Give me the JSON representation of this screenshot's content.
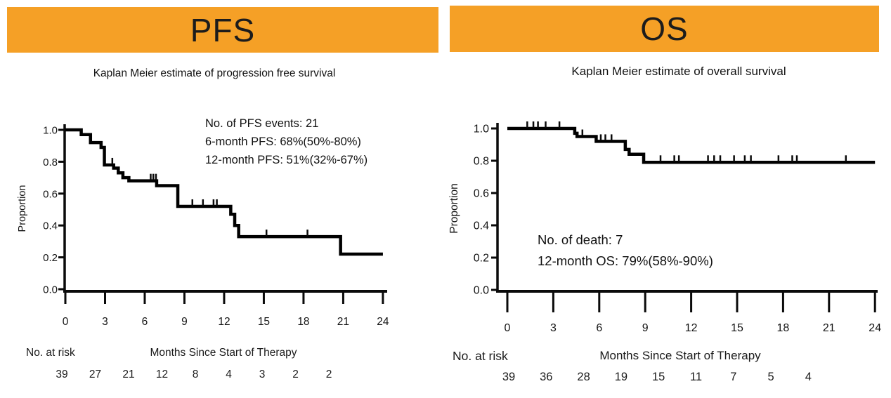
{
  "colors": {
    "banner": "#F5A026",
    "curve": "#000000"
  },
  "chart_data": [
    {
      "type": "line",
      "subtype": "kaplan-meier-step",
      "title": "PFS",
      "subtitle": "Kaplan Meier estimate of progression free survival",
      "xlabel": "Months Since Start of Therapy",
      "ylabel": "Proportion",
      "xlim": [
        0,
        24
      ],
      "ylim": [
        0.0,
        1.0
      ],
      "x_ticks": [
        {
          "v": 0,
          "label": "0"
        },
        {
          "v": 3,
          "label": "3"
        },
        {
          "v": 6,
          "label": "6"
        },
        {
          "v": 9,
          "label": "9"
        },
        {
          "v": 12,
          "label": "12"
        },
        {
          "v": 15,
          "label": "15"
        },
        {
          "v": 18,
          "label": "18"
        },
        {
          "v": 21,
          "label": "21"
        },
        {
          "v": 24,
          "label": "24"
        }
      ],
      "y_ticks": [
        {
          "v": 0.0,
          "label": "0.0"
        },
        {
          "v": 0.2,
          "label": "0.2"
        },
        {
          "v": 0.4,
          "label": "0.4"
        },
        {
          "v": 0.6,
          "label": "0.6"
        },
        {
          "v": 0.8,
          "label": "0.8"
        },
        {
          "v": 1.0,
          "label": "1.0"
        }
      ],
      "annotations": [
        "No. of PFS events: 21",
        "6-month PFS: 68%(50%-80%)",
        "12-month PFS: 51%(32%-67%)"
      ],
      "steps": [
        {
          "t": 1.2,
          "p": 1.0
        },
        {
          "t": 1.9,
          "p": 0.97
        },
        {
          "t": 2.7,
          "p": 0.92
        },
        {
          "t": 2.95,
          "p": 0.89
        },
        {
          "t": 3.65,
          "p": 0.78
        },
        {
          "t": 4.0,
          "p": 0.76
        },
        {
          "t": 4.35,
          "p": 0.73
        },
        {
          "t": 4.8,
          "p": 0.7
        },
        {
          "t": 6.9,
          "p": 0.68
        },
        {
          "t": 8.5,
          "p": 0.65
        },
        {
          "t": 12.5,
          "p": 0.52
        },
        {
          "t": 12.8,
          "p": 0.47
        },
        {
          "t": 13.1,
          "p": 0.4
        },
        {
          "t": 20.8,
          "p": 0.33
        },
        {
          "t": 24,
          "p": 0.22
        }
      ],
      "censor_marks": [
        {
          "t": 3.55,
          "p": 0.78
        },
        {
          "t": 6.45,
          "p": 0.68
        },
        {
          "t": 6.65,
          "p": 0.68
        },
        {
          "t": 6.85,
          "p": 0.68
        },
        {
          "t": 9.6,
          "p": 0.52
        },
        {
          "t": 10.4,
          "p": 0.52
        },
        {
          "t": 11.2,
          "p": 0.52
        },
        {
          "t": 11.45,
          "p": 0.52
        },
        {
          "t": 15.2,
          "p": 0.33
        },
        {
          "t": 18.3,
          "p": 0.33
        }
      ],
      "risk_label": "No. at risk",
      "risk_values": [
        "39",
        "27",
        "21",
        "12",
        "8",
        "4",
        "3",
        "2",
        "2"
      ]
    },
    {
      "type": "line",
      "subtype": "kaplan-meier-step",
      "title": "OS",
      "subtitle": "Kaplan Meier estimate of overall survival",
      "xlabel": "Months Since Start of Therapy",
      "ylabel": "Proportion",
      "xlim": [
        0,
        24
      ],
      "ylim": [
        0.0,
        1.0
      ],
      "x_ticks": [
        {
          "v": 0,
          "label": "0"
        },
        {
          "v": 3,
          "label": "3"
        },
        {
          "v": 6,
          "label": "6"
        },
        {
          "v": 9,
          "label": "9"
        },
        {
          "v": 12,
          "label": "12"
        },
        {
          "v": 15,
          "label": "15"
        },
        {
          "v": 18,
          "label": "18"
        },
        {
          "v": 21,
          "label": "21"
        },
        {
          "v": 24,
          "label": "24"
        }
      ],
      "y_ticks": [
        {
          "v": 0.0,
          "label": "0.0"
        },
        {
          "v": 0.2,
          "label": "0.2"
        },
        {
          "v": 0.4,
          "label": "0.4"
        },
        {
          "v": 0.6,
          "label": "0.6"
        },
        {
          "v": 0.8,
          "label": "0.8"
        },
        {
          "v": 1.0,
          "label": "1.0"
        }
      ],
      "annotations": [
        "No. of death: 7",
        "12-month OS: 79%(58%-90%)"
      ],
      "steps": [
        {
          "t": 4.4,
          "p": 1.0
        },
        {
          "t": 4.55,
          "p": 0.97
        },
        {
          "t": 5.8,
          "p": 0.95
        },
        {
          "t": 7.7,
          "p": 0.92
        },
        {
          "t": 7.95,
          "p": 0.87
        },
        {
          "t": 8.9,
          "p": 0.84
        },
        {
          "t": 24,
          "p": 0.79
        }
      ],
      "censor_marks": [
        {
          "t": 1.3,
          "p": 1.0
        },
        {
          "t": 1.7,
          "p": 1.0
        },
        {
          "t": 2.0,
          "p": 1.0
        },
        {
          "t": 2.5,
          "p": 1.0
        },
        {
          "t": 3.4,
          "p": 1.0
        },
        {
          "t": 4.9,
          "p": 0.95
        },
        {
          "t": 6.1,
          "p": 0.92
        },
        {
          "t": 6.4,
          "p": 0.92
        },
        {
          "t": 6.8,
          "p": 0.92
        },
        {
          "t": 10.0,
          "p": 0.79
        },
        {
          "t": 10.9,
          "p": 0.79
        },
        {
          "t": 11.2,
          "p": 0.79
        },
        {
          "t": 13.1,
          "p": 0.79
        },
        {
          "t": 13.5,
          "p": 0.79
        },
        {
          "t": 13.9,
          "p": 0.79
        },
        {
          "t": 14.8,
          "p": 0.79
        },
        {
          "t": 15.5,
          "p": 0.79
        },
        {
          "t": 15.9,
          "p": 0.79
        },
        {
          "t": 17.7,
          "p": 0.79
        },
        {
          "t": 18.6,
          "p": 0.79
        },
        {
          "t": 18.9,
          "p": 0.79
        },
        {
          "t": 22.1,
          "p": 0.79
        }
      ],
      "risk_label": "No. at risk",
      "risk_values": [
        "39",
        "36",
        "28",
        "19",
        "15",
        "11",
        "7",
        "5",
        "4"
      ]
    }
  ]
}
